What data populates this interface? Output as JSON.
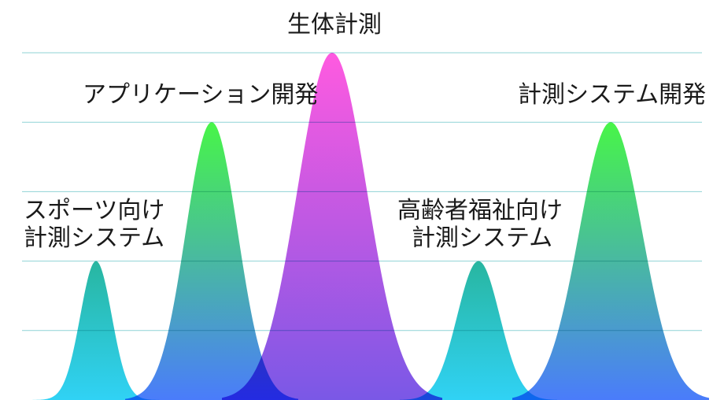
{
  "title": "生体計測",
  "peaks": [
    {
      "lines": [
        "スポーツ向け",
        "計測システム"
      ],
      "level": 2,
      "colors": {
        "top": "#28b6a0",
        "bottom": "#30d2f5"
      }
    },
    {
      "lines": [
        "アプリケーション開発"
      ],
      "level": 4,
      "colors": {
        "top": "#48f548",
        "bottom": "#4a7cfb"
      }
    },
    {
      "lines": [
        "生体計測"
      ],
      "level": 5,
      "colors": {
        "top": "#ff5ae0",
        "bottom": "#7a58e6"
      }
    },
    {
      "lines": [
        "高齢者福祉向け",
        "計測システム"
      ],
      "level": 2,
      "colors": {
        "top": "#28b6a0",
        "bottom": "#30d2f5"
      }
    },
    {
      "lines": [
        "計測システム開発"
      ],
      "level": 4,
      "colors": {
        "top": "#48f548",
        "bottom": "#4a7cfb"
      }
    }
  ],
  "gridlines": 5,
  "gridColor": "#8fd3d6"
}
